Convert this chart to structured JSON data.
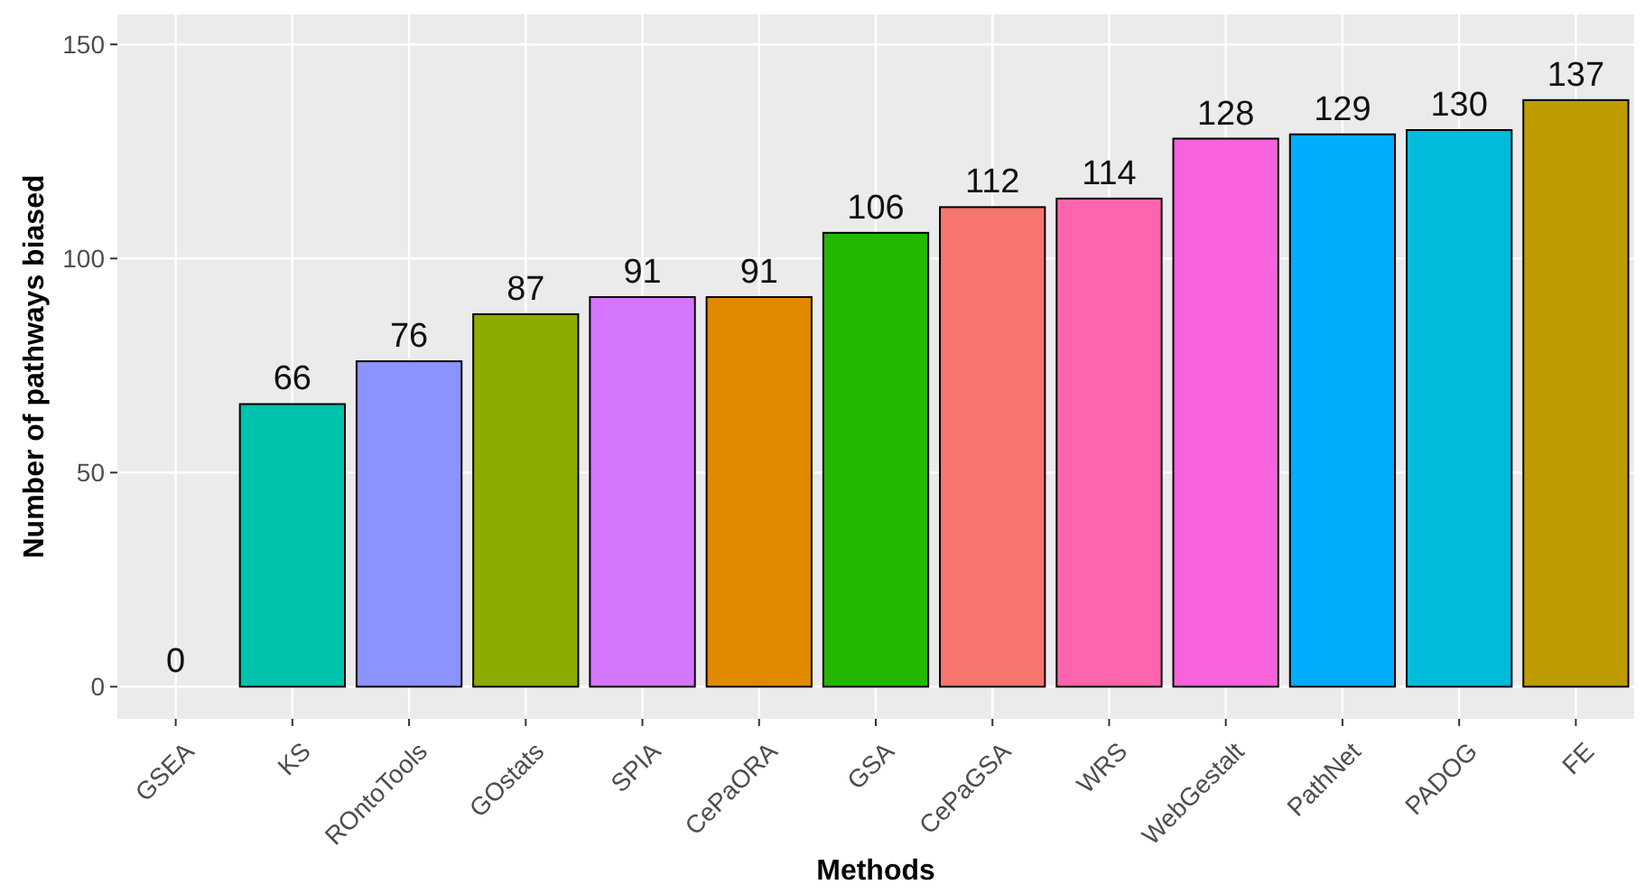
{
  "chart_data": {
    "type": "bar",
    "xlabel": "Methods",
    "ylabel": "Number of pathways biased",
    "categories": [
      "GSEA",
      "KS",
      "ROntoTools",
      "GOstats",
      "SPIA",
      "CePaORA",
      "GSA",
      "CePaGSA",
      "WRS",
      "WebGestalt",
      "PathNet",
      "PADOG",
      "FE"
    ],
    "values": [
      0,
      66,
      76,
      87,
      91,
      91,
      106,
      112,
      114,
      128,
      129,
      130,
      137
    ],
    "colors": [
      "#00be70",
      "#00c1ab",
      "#8b93ff",
      "#8cab00",
      "#d575fe",
      "#e18a00",
      "#24b700",
      "#f8766d",
      "#ff65ac",
      "#f962dd",
      "#00acfc",
      "#00bbda",
      "#be9c00"
    ],
    "ylim": [
      -7.5,
      157
    ],
    "yticks": [
      0,
      50,
      100,
      150
    ],
    "grid": true,
    "data_labels": true
  }
}
